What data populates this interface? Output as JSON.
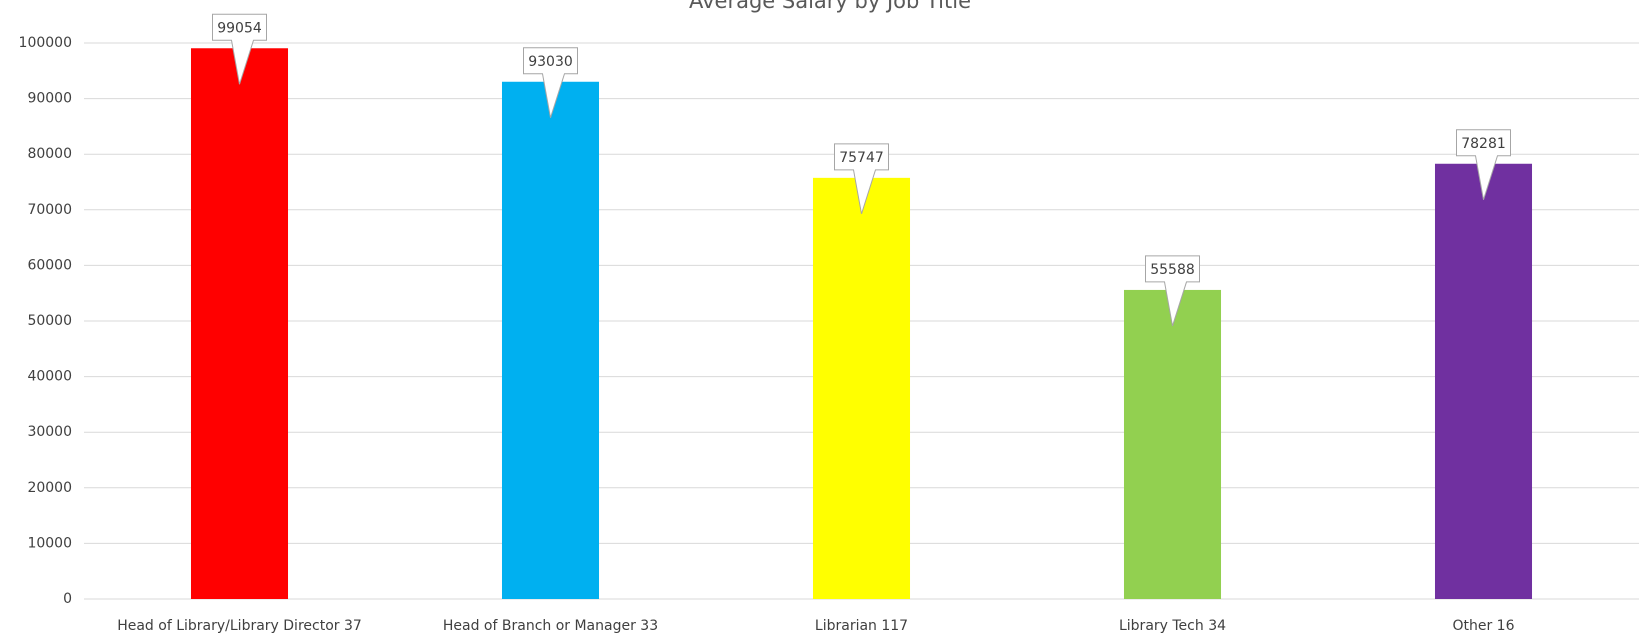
{
  "chart_data": {
    "type": "bar",
    "title": "Average Salary by Job Title",
    "categories": [
      "Head of Library/Library Director 37",
      "Head of Branch or Manager 33",
      "Librarian 117",
      "Library Tech 34",
      "Other 16"
    ],
    "values": [
      99054,
      93030,
      75747,
      55588,
      78281
    ],
    "colors": [
      "#ff0000",
      "#00b0f0",
      "#ffff00",
      "#92d050",
      "#7030a0"
    ],
    "ylim": [
      0,
      100000
    ],
    "yticks": [
      0,
      10000,
      20000,
      30000,
      40000,
      50000,
      60000,
      70000,
      80000,
      90000,
      100000
    ],
    "grid": true
  }
}
